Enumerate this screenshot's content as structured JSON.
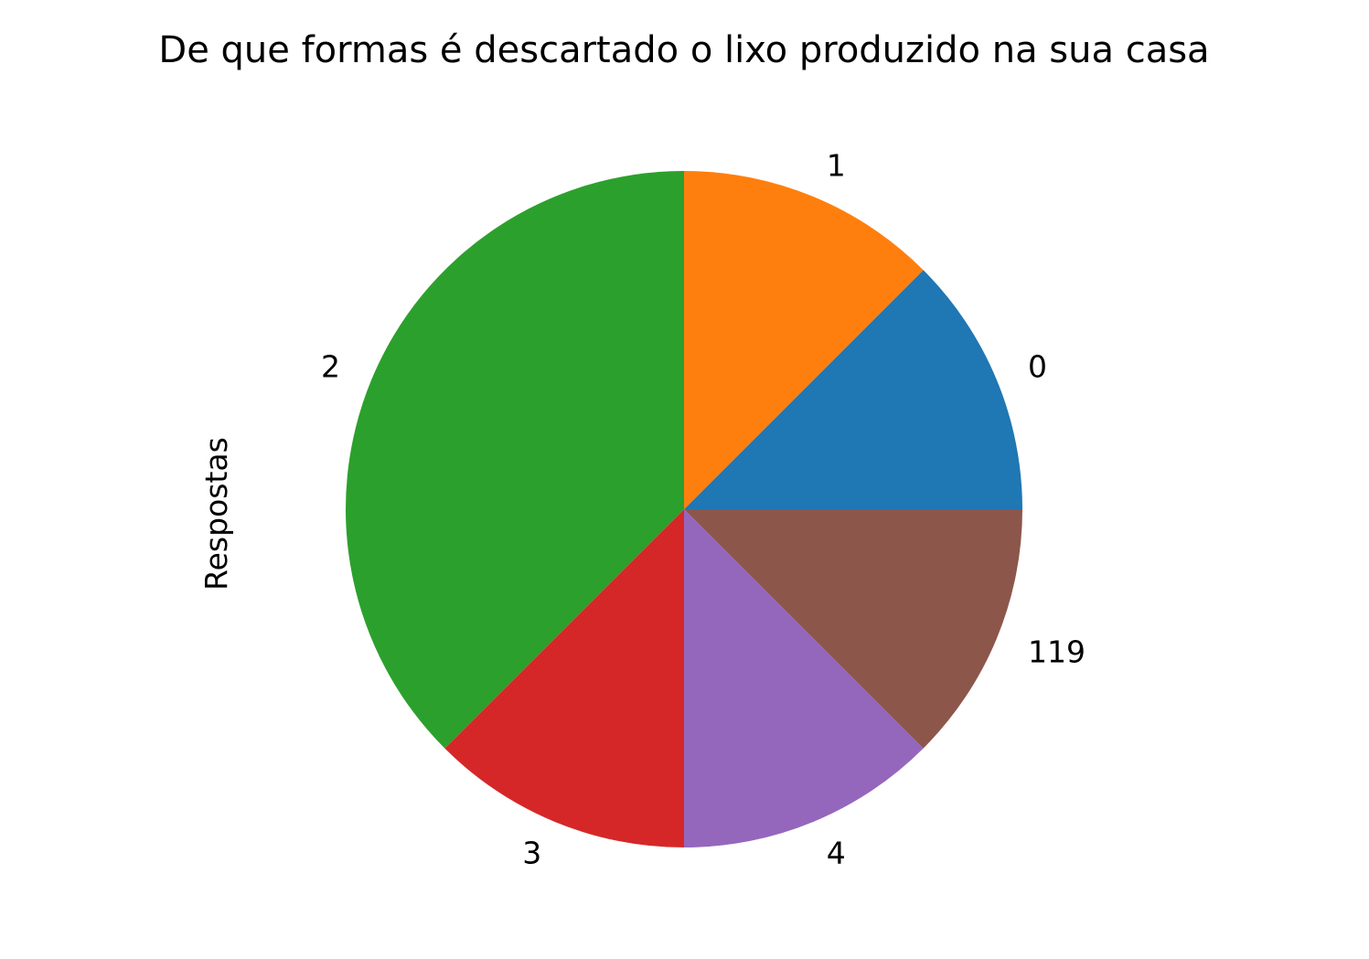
{
  "chart_data": {
    "type": "pie",
    "title": "De que formas é descartado o lixo produzido na sua casa",
    "ylabel": "Respostas",
    "categories": [
      "0",
      "1",
      "2",
      "3",
      "4",
      "119"
    ],
    "values": [
      1,
      1,
      3,
      1,
      1,
      1
    ],
    "colors": [
      "#1f77b4",
      "#ff7f0e",
      "#2ca02c",
      "#d62728",
      "#9467bd",
      "#8c564b"
    ],
    "start_angle": 0,
    "direction": "counterclockwise",
    "legend": "none"
  }
}
